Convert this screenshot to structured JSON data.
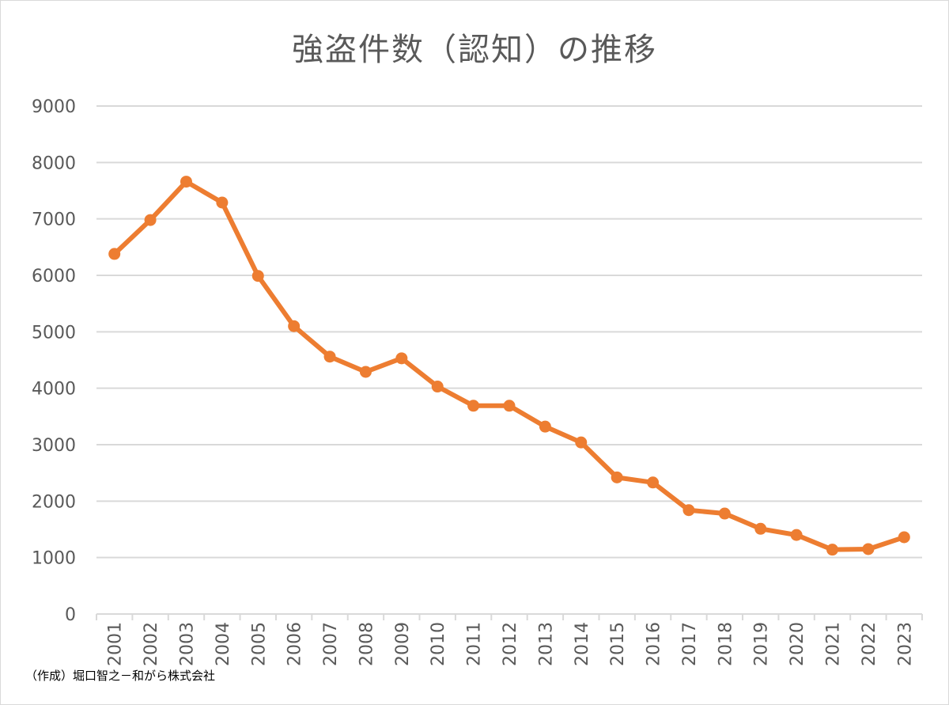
{
  "chart_data": {
    "type": "line",
    "title": "強盗件数（認知）の推移",
    "xlabel": "",
    "ylabel": "",
    "categories": [
      "2001",
      "2002",
      "2003",
      "2004",
      "2005",
      "2006",
      "2007",
      "2008",
      "2009",
      "2010",
      "2011",
      "2012",
      "2013",
      "2014",
      "2015",
      "2016",
      "2017",
      "2018",
      "2019",
      "2020",
      "2021",
      "2022",
      "2023"
    ],
    "series": [
      {
        "values": [
          6380,
          6980,
          7660,
          7290,
          5990,
          5100,
          4560,
          4290,
          4530,
          4030,
          3690,
          3690,
          3320,
          3040,
          2420,
          2330,
          1840,
          1780,
          1510,
          1400,
          1140,
          1150,
          1360
        ],
        "color": "#ed7d31"
      }
    ],
    "ylim": [
      0,
      9000
    ],
    "yticks": [
      0,
      1000,
      2000,
      3000,
      4000,
      5000,
      6000,
      7000,
      8000,
      9000
    ],
    "grid": true,
    "legend": "none",
    "gridline_color": "#d9d9d9"
  },
  "source_note": "（作成）堀口智之－和がら株式会社"
}
